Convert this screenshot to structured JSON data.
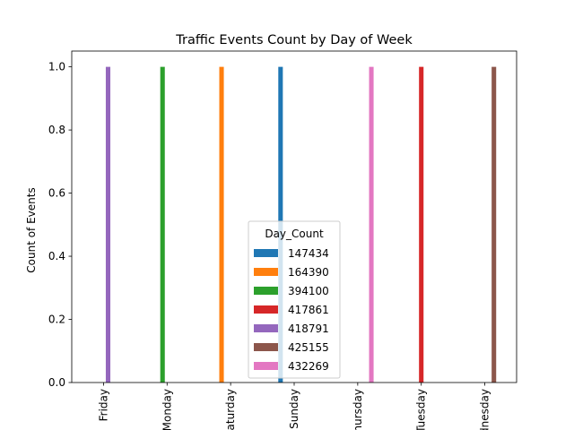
{
  "chart_data": {
    "type": "bar",
    "title": "Traffic Events Count by Day of Week",
    "ylabel": "Count of Events",
    "xlabel": "",
    "categories": [
      "Friday",
      "Monday",
      "Saturday",
      "Sunday",
      "Thursday",
      "Tuesday",
      "Wednesday"
    ],
    "ylim": [
      0,
      1.05
    ],
    "yticks": [
      0.0,
      0.2,
      0.4,
      0.6,
      0.8,
      1.0
    ],
    "ytick_labels": [
      "0.0",
      "0.2",
      "0.4",
      "0.6",
      "0.8",
      "1.0"
    ],
    "grid": false,
    "legend": {
      "title": "Day_Count",
      "placement": "lower-center"
    },
    "series": [
      {
        "name": "147434",
        "color": "#1f77b4",
        "values": [
          0,
          0,
          0,
          1,
          0,
          0,
          0
        ]
      },
      {
        "name": "164390",
        "color": "#ff7f0e",
        "values": [
          0,
          0,
          1,
          0,
          0,
          0,
          0
        ]
      },
      {
        "name": "394100",
        "color": "#2ca02c",
        "values": [
          0,
          1,
          0,
          0,
          0,
          0,
          0
        ]
      },
      {
        "name": "417861",
        "color": "#d62728",
        "values": [
          0,
          0,
          0,
          0,
          0,
          1,
          0
        ]
      },
      {
        "name": "418791",
        "color": "#9467bd",
        "values": [
          1,
          0,
          0,
          0,
          0,
          0,
          0
        ]
      },
      {
        "name": "425155",
        "color": "#8c564b",
        "values": [
          0,
          0,
          0,
          0,
          0,
          0,
          1
        ]
      },
      {
        "name": "432269",
        "color": "#e377c2",
        "values": [
          0,
          0,
          0,
          0,
          1,
          0,
          0
        ]
      }
    ]
  }
}
